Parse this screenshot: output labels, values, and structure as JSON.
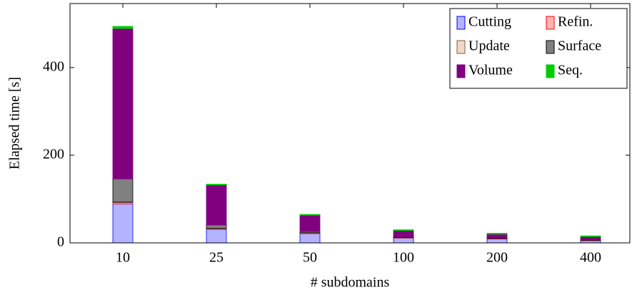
{
  "chart_data": {
    "type": "stacked_bar",
    "xlabel": "# subdomains",
    "ylabel": "Elapsed time [s]",
    "categories": [
      "10",
      "25",
      "50",
      "100",
      "200",
      "400"
    ],
    "series": [
      {
        "name": "Cutting",
        "color": "#b3b3ff",
        "edge_color": "#0000ff",
        "values": [
          89,
          31,
          21,
          11,
          9,
          5
        ]
      },
      {
        "name": "Refin.",
        "color": "#ffb3b3",
        "edge_color": "#ff0000",
        "values": [
          3,
          1,
          1,
          0.5,
          0.5,
          0.5
        ]
      },
      {
        "name": "Update",
        "color": "#f0d9c8",
        "edge_color": "#8b5a3c",
        "values": [
          1,
          1,
          1,
          0.5,
          0.5,
          0.5
        ]
      },
      {
        "name": "Surface",
        "color": "#808080",
        "edge_color": "#000000",
        "values": [
          53,
          8,
          3,
          1,
          1,
          1
        ]
      },
      {
        "name": "Volume",
        "color": "#800080",
        "edge_color": "#800080",
        "values": [
          343,
          91,
          37,
          15,
          9,
          7
        ]
      },
      {
        "name": "Seq.",
        "color": "#00cc00",
        "edge_color": "#00cc00",
        "values": [
          5,
          2,
          2,
          2,
          2,
          2
        ]
      }
    ],
    "ylim": [
      0,
      546
    ],
    "yticks": [
      0,
      200,
      400
    ],
    "legend": "upper right"
  }
}
